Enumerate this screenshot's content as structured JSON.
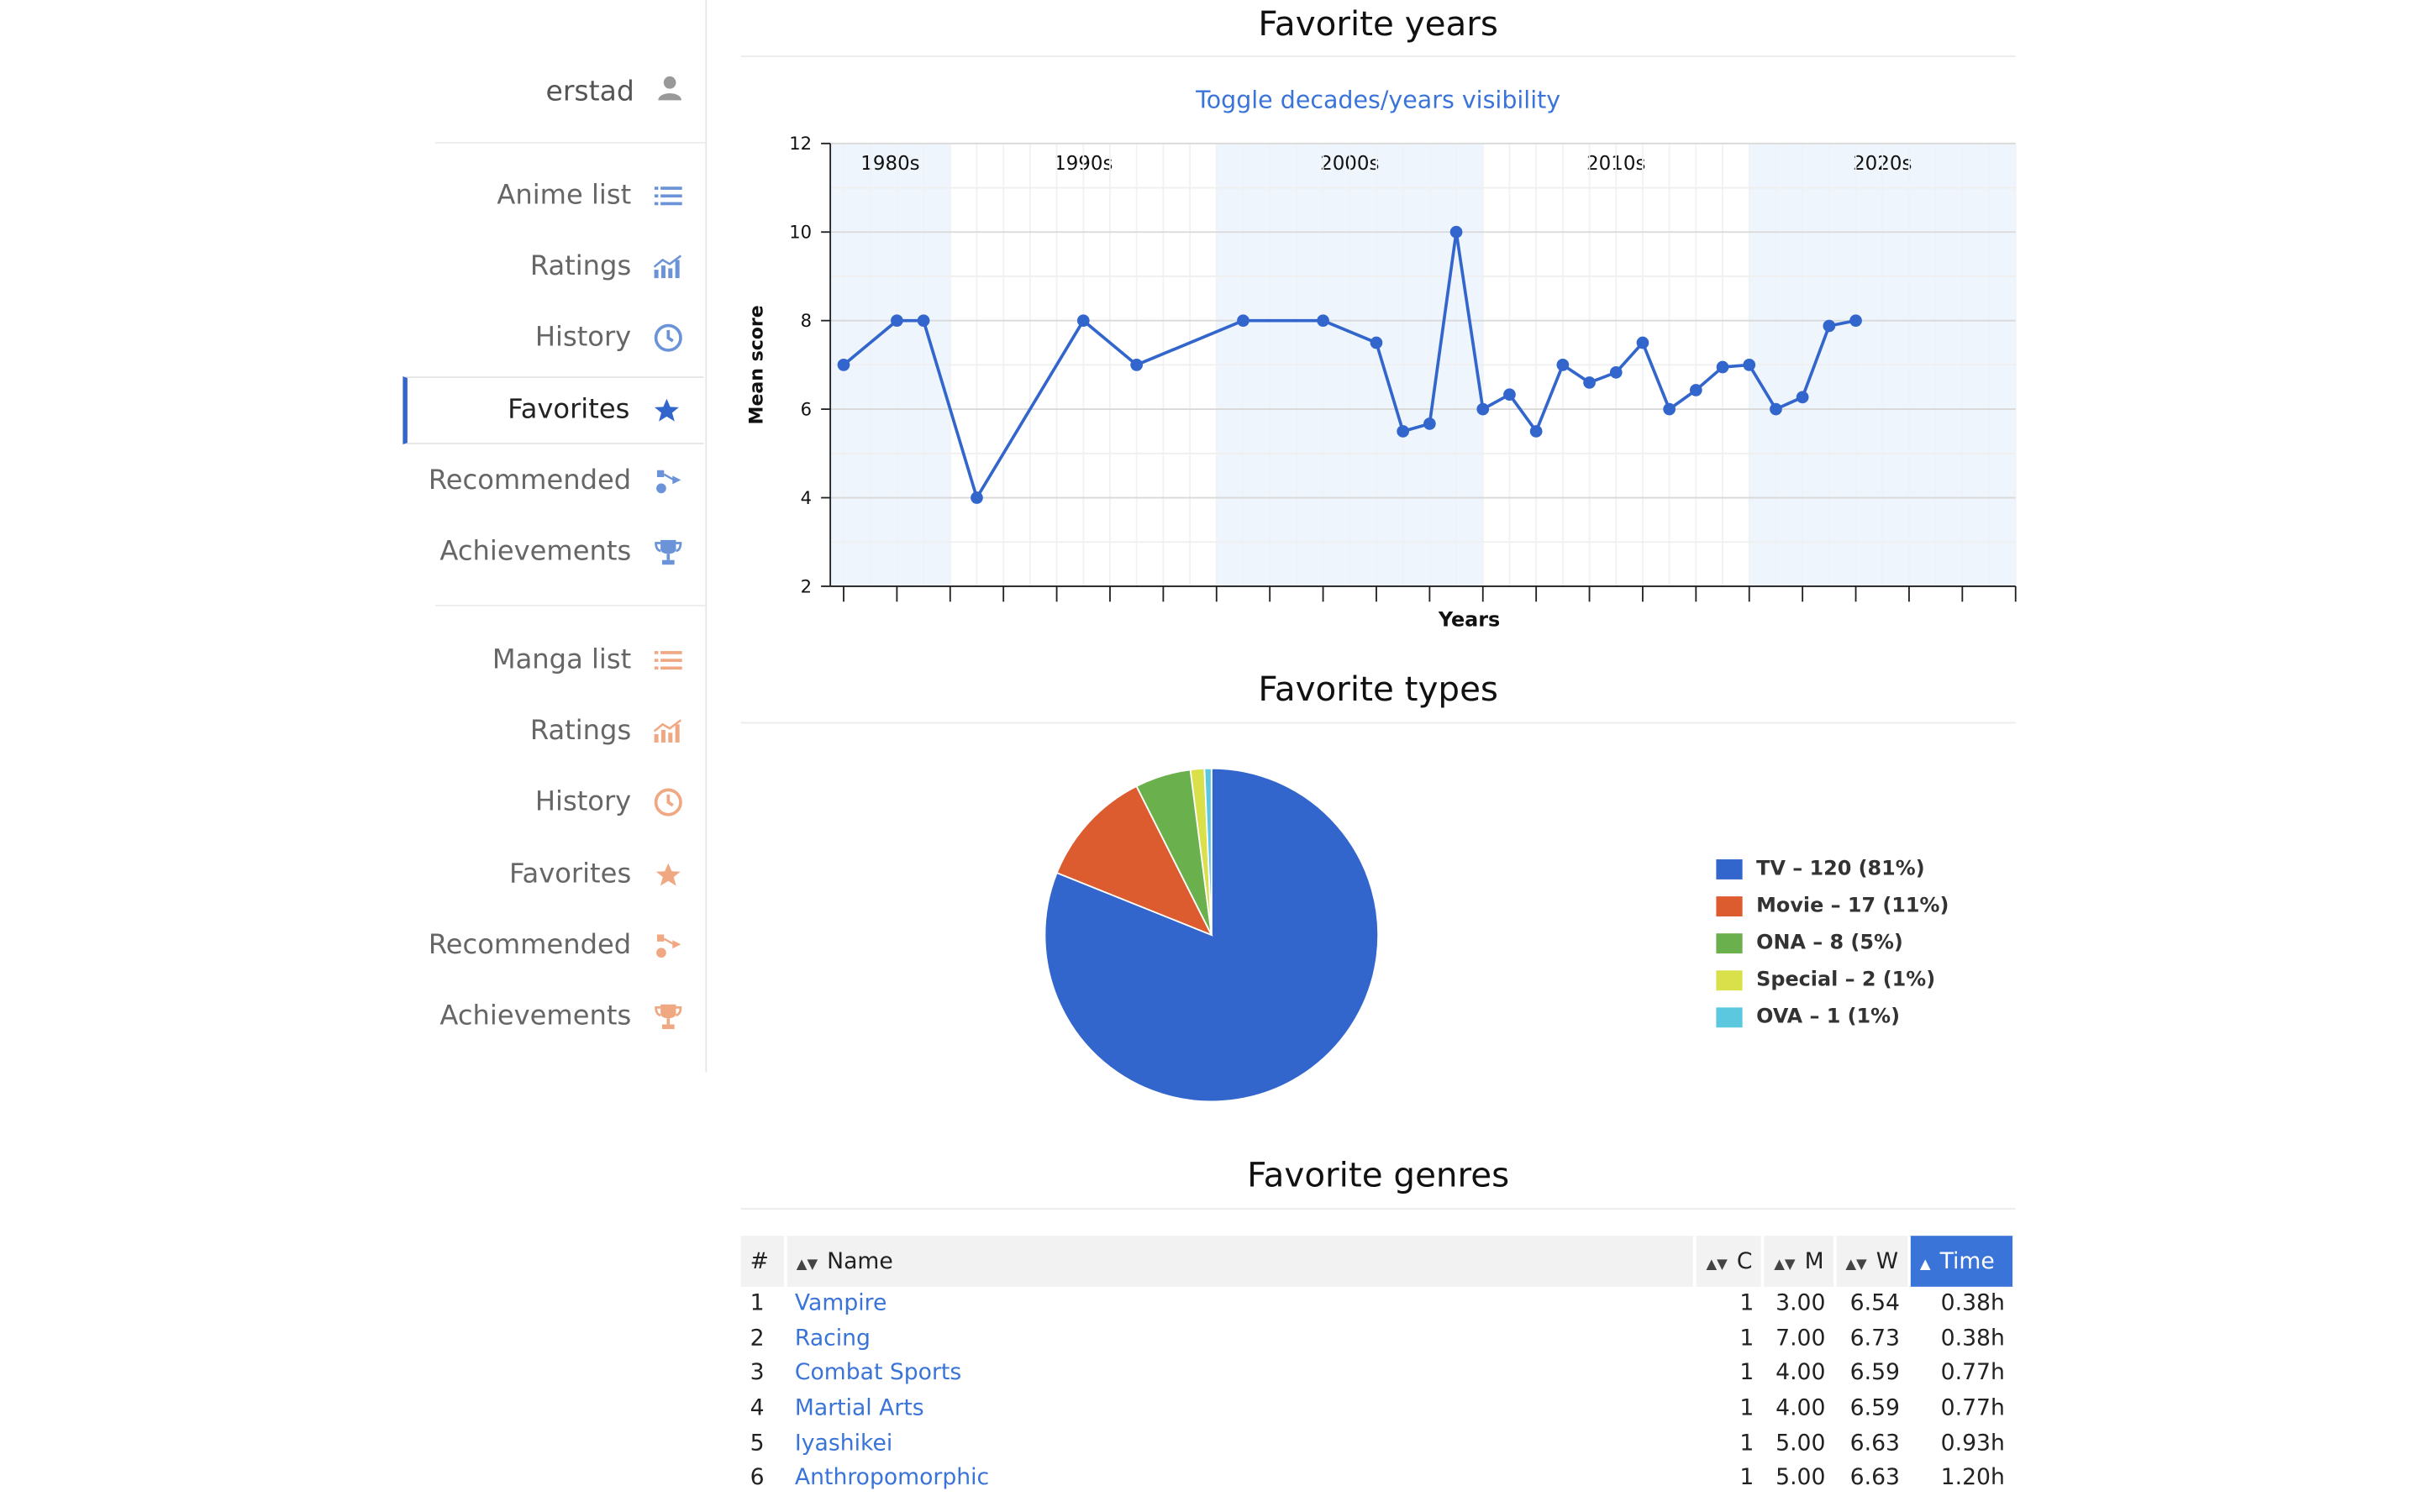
{
  "sidebar": {
    "user": {
      "name": "erstad",
      "icon": "user-icon"
    },
    "anime": [
      {
        "label": "Anime list",
        "icon": "list-icon"
      },
      {
        "label": "Ratings",
        "icon": "bar-chart-icon"
      },
      {
        "label": "History",
        "icon": "history-icon"
      },
      {
        "label": "Favorites",
        "icon": "star-icon",
        "active": true
      },
      {
        "label": "Recommended",
        "icon": "recommend-icon"
      },
      {
        "label": "Achievements",
        "icon": "trophy-icon"
      }
    ],
    "manga": [
      {
        "label": "Manga list",
        "icon": "list-icon"
      },
      {
        "label": "Ratings",
        "icon": "bar-chart-icon"
      },
      {
        "label": "History",
        "icon": "history-icon"
      },
      {
        "label": "Favorites",
        "icon": "star-icon"
      },
      {
        "label": "Recommended",
        "icon": "recommend-icon"
      },
      {
        "label": "Achievements",
        "icon": "trophy-icon"
      }
    ],
    "colors": {
      "anime": "#6a93d8",
      "manga": "#f0a882",
      "active": "#3366cc"
    }
  },
  "sections": {
    "years_title": "Favorite years",
    "toggle_label": "Toggle decades/years visibility",
    "types_title": "Favorite types",
    "genres_title": "Favorite genres"
  },
  "chart_data": [
    {
      "type": "line",
      "xlabel": "Years",
      "ylabel": "Mean score",
      "ylim": [
        2,
        12
      ],
      "yticks": [
        2,
        4,
        6,
        8,
        10,
        12
      ],
      "xlim": [
        1977.5,
        2022
      ],
      "grid": true,
      "decades": [
        {
          "label": "1980s",
          "from": 1977.5,
          "to": 1982,
          "shaded": true
        },
        {
          "label": "1990s",
          "from": 1982,
          "to": 1992,
          "shaded": false
        },
        {
          "label": "2000s",
          "from": 1992,
          "to": 2002,
          "shaded": true
        },
        {
          "label": "2010s",
          "from": 2002,
          "to": 2012,
          "shaded": false
        },
        {
          "label": "2020s",
          "from": 2012,
          "to": 2022,
          "shaded": true
        }
      ],
      "points": [
        {
          "x": 1978,
          "y": 7.0
        },
        {
          "x": 1980,
          "y": 8.0
        },
        {
          "x": 1981,
          "y": 8.0
        },
        {
          "x": 1983,
          "y": 4.0
        },
        {
          "x": 1987,
          "y": 8.0
        },
        {
          "x": 1989,
          "y": 7.0
        },
        {
          "x": 1993,
          "y": 8.0
        },
        {
          "x": 1996,
          "y": 8.0
        },
        {
          "x": 1998,
          "y": 7.5
        },
        {
          "x": 1999,
          "y": 5.5
        },
        {
          "x": 2000,
          "y": 5.67
        },
        {
          "x": 2001,
          "y": 10.0
        },
        {
          "x": 2002,
          "y": 6.0
        },
        {
          "x": 2003,
          "y": 6.33
        },
        {
          "x": 2004,
          "y": 5.5
        },
        {
          "x": 2005,
          "y": 7.0
        },
        {
          "x": 2006,
          "y": 6.6
        },
        {
          "x": 2007,
          "y": 6.83
        },
        {
          "x": 2008,
          "y": 7.5
        },
        {
          "x": 2009,
          "y": 6.0
        },
        {
          "x": 2010,
          "y": 6.43
        },
        {
          "x": 2011,
          "y": 6.95
        },
        {
          "x": 2012,
          "y": 7.0
        },
        {
          "x": 2013,
          "y": 6.0
        },
        {
          "x": 2014,
          "y": 6.27
        },
        {
          "x": 2015,
          "y": 7.88
        },
        {
          "x": 2016,
          "y": 8.0
        }
      ],
      "color": "#3366cc"
    },
    {
      "type": "pie",
      "slices": [
        {
          "label": "TV – 120 (81%)",
          "value": 120,
          "color": "#3366cc"
        },
        {
          "label": "Movie – 17 (11%)",
          "value": 17,
          "color": "#dc5b2f"
        },
        {
          "label": "ONA – 8 (5%)",
          "value": 8,
          "color": "#6ab04c"
        },
        {
          "label": "Special – 2 (1%)",
          "value": 2,
          "color": "#d9e04a"
        },
        {
          "label": "OVA – 1 (1%)",
          "value": 1,
          "color": "#5bc8e0"
        }
      ]
    }
  ],
  "genres": {
    "headers": {
      "rank": "#",
      "name": "Name",
      "count": "C",
      "mean": "M",
      "weighted": "W",
      "time": "Time"
    },
    "rows": [
      {
        "rank": "1",
        "name": "Vampire",
        "count": "1",
        "mean": "3.00",
        "weighted": "6.54",
        "time": "0.38h"
      },
      {
        "rank": "2",
        "name": "Racing",
        "count": "1",
        "mean": "7.00",
        "weighted": "6.73",
        "time": "0.38h"
      },
      {
        "rank": "3",
        "name": "Combat Sports",
        "count": "1",
        "mean": "4.00",
        "weighted": "6.59",
        "time": "0.77h"
      },
      {
        "rank": "4",
        "name": "Martial Arts",
        "count": "1",
        "mean": "4.00",
        "weighted": "6.59",
        "time": "0.77h"
      },
      {
        "rank": "5",
        "name": "Iyashikei",
        "count": "1",
        "mean": "5.00",
        "weighted": "6.63",
        "time": "0.93h"
      },
      {
        "rank": "6",
        "name": "Anthropomorphic",
        "count": "1",
        "mean": "5.00",
        "weighted": "6.63",
        "time": "1.20h"
      }
    ]
  }
}
